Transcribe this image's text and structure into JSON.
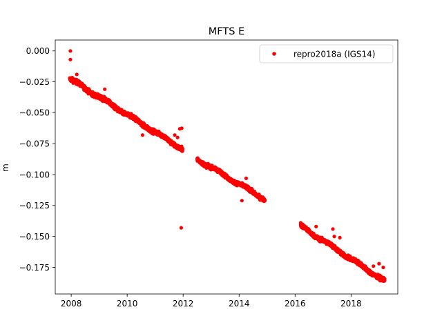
{
  "chart_data": {
    "type": "scatter",
    "title": "MFTS E",
    "xlabel": "",
    "ylabel": "m",
    "xlim": [
      2007.43,
      2019.67
    ],
    "ylim": [
      -0.1965,
      0.0088
    ],
    "x_ticks": [
      2008,
      2010,
      2012,
      2014,
      2016,
      2018
    ],
    "x_tick_labels": [
      "2008",
      "2010",
      "2012",
      "2014",
      "2016",
      "2018"
    ],
    "y_ticks": [
      0.0,
      -0.025,
      -0.05,
      -0.075,
      -0.1,
      -0.125,
      -0.15,
      -0.175
    ],
    "y_tick_labels": [
      "0.000",
      "−0.025",
      "−0.050",
      "−0.075",
      "−0.100",
      "−0.125",
      "−0.150",
      "−0.175"
    ],
    "grid": false,
    "legend_position": "top-right",
    "series": [
      {
        "name": "repro2018a (IGS14)",
        "color": "#ff0000",
        "marker": "circle",
        "segments": [
          {
            "x_start": 2007.95,
            "x_end": 2011.98,
            "y_start": -0.0225,
            "y_end": -0.0795,
            "noise": 0.0016
          },
          {
            "x_start": 2012.5,
            "x_end": 2014.92,
            "y_start": -0.0875,
            "y_end": -0.12,
            "noise": 0.0014
          },
          {
            "x_start": 2016.2,
            "x_end": 2019.2,
            "y_start": -0.1415,
            "y_end": -0.186,
            "noise": 0.0015
          }
        ],
        "points": [
          [
            2007.97,
            0.0
          ],
          [
            2007.97,
            -0.007
          ],
          [
            2008.2,
            -0.019
          ],
          [
            2009.2,
            -0.031
          ],
          [
            2010.55,
            -0.068
          ],
          [
            2011.7,
            -0.068
          ],
          [
            2011.8,
            -0.07
          ],
          [
            2011.88,
            -0.063
          ],
          [
            2011.95,
            -0.0625
          ],
          [
            2011.93,
            -0.143
          ],
          [
            2014.1,
            -0.121
          ],
          [
            2014.25,
            -0.103
          ],
          [
            2016.2,
            -0.139
          ],
          [
            2016.75,
            -0.142
          ],
          [
            2017.35,
            -0.144
          ],
          [
            2017.4,
            -0.15
          ],
          [
            2017.6,
            -0.151
          ],
          [
            2018.55,
            -0.176
          ],
          [
            2018.8,
            -0.174
          ],
          [
            2019.0,
            -0.172
          ],
          [
            2019.15,
            -0.175
          ]
        ]
      }
    ]
  }
}
